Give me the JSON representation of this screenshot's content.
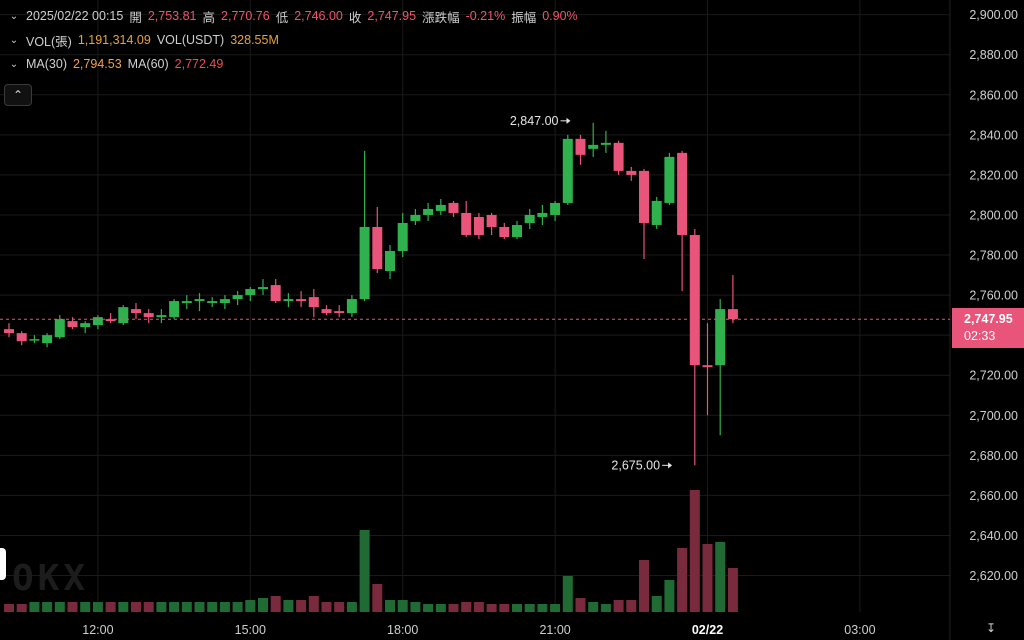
{
  "header": {
    "datetime": "2025/02/22 00:15",
    "open_label": "開",
    "open": "2,753.81",
    "high_label": "高",
    "high": "2,770.76",
    "low_label": "低",
    "low": "2,746.00",
    "close_label": "收",
    "close": "2,747.95",
    "change_label": "漲跌幅",
    "change": "-0.21%",
    "amplitude_label": "振幅",
    "amplitude": "0.90%"
  },
  "volume": {
    "vol_label": "VOL(張)",
    "vol_value": "1,191,314.09",
    "usdt_label": "VOL(USDT)",
    "usdt_value": "328.55M"
  },
  "ma": {
    "ma30_label": "MA(30)",
    "ma30_value": "2,794.53",
    "ma60_label": "MA(60)",
    "ma60_value": "2,772.49"
  },
  "price_tag": {
    "price": "2,747.95",
    "countdown": "02:33"
  },
  "watermark": "OKX",
  "colors": {
    "up": "#2fb24d",
    "down": "#e8547a",
    "vol_up": "#1f6b33",
    "vol_down": "#7a2a3d",
    "grid": "#1a1a1a"
  },
  "chart_data": {
    "type": "candlestick",
    "y_ticks": [
      2620,
      2640,
      2660,
      2680,
      2700,
      2720,
      2740,
      2760,
      2780,
      2800,
      2820,
      2840,
      2860,
      2880,
      2900
    ],
    "y_tick_labels": [
      "2,620.00",
      "2,640.00",
      "2,660.00",
      "2,680.00",
      "2,700.00",
      "2,720.00",
      "2,740.00",
      "2,760.00",
      "2,780.00",
      "2,800.00",
      "2,820.00",
      "2,840.00",
      "2,860.00",
      "2,880.00",
      "2,900.00"
    ],
    "ylim": [
      2600,
      2910
    ],
    "x_ticks": [
      {
        "label": "12:00",
        "index": 7
      },
      {
        "label": "15:00",
        "index": 19
      },
      {
        "label": "18:00",
        "index": 31
      },
      {
        "label": "21:00",
        "index": 43
      },
      {
        "label": "02/22",
        "index": 55
      },
      {
        "label": "03:00",
        "index": 67
      }
    ],
    "current_price": 2747.95,
    "annotations": [
      {
        "label": "2,847.00",
        "index": 45,
        "price": 2847
      },
      {
        "label": "2,675.00",
        "index": 53,
        "price": 2675
      }
    ],
    "candles": [
      {
        "o": 2743,
        "h": 2746,
        "l": 2739,
        "c": 2741,
        "v": 4
      },
      {
        "o": 2741,
        "h": 2742,
        "l": 2735,
        "c": 2737,
        "v": 4
      },
      {
        "o": 2738,
        "h": 2740,
        "l": 2736,
        "c": 2738,
        "v": 5
      },
      {
        "o": 2736,
        "h": 2741,
        "l": 2734,
        "c": 2740,
        "v": 5
      },
      {
        "o": 2739,
        "h": 2750,
        "l": 2738,
        "c": 2748,
        "v": 5
      },
      {
        "o": 2747,
        "h": 2749,
        "l": 2743,
        "c": 2744,
        "v": 5
      },
      {
        "o": 2744,
        "h": 2747,
        "l": 2741,
        "c": 2746,
        "v": 5
      },
      {
        "o": 2745,
        "h": 2750,
        "l": 2743,
        "c": 2749,
        "v": 5
      },
      {
        "o": 2748,
        "h": 2751,
        "l": 2746,
        "c": 2747,
        "v": 5
      },
      {
        "o": 2746,
        "h": 2755,
        "l": 2745,
        "c": 2754,
        "v": 5
      },
      {
        "o": 2753,
        "h": 2756,
        "l": 2748,
        "c": 2751,
        "v": 5
      },
      {
        "o": 2751,
        "h": 2753,
        "l": 2746,
        "c": 2749,
        "v": 5
      },
      {
        "o": 2749,
        "h": 2753,
        "l": 2746,
        "c": 2750,
        "v": 5
      },
      {
        "o": 2749,
        "h": 2758,
        "l": 2748,
        "c": 2757,
        "v": 5
      },
      {
        "o": 2756,
        "h": 2760,
        "l": 2753,
        "c": 2757,
        "v": 5
      },
      {
        "o": 2757,
        "h": 2761,
        "l": 2752,
        "c": 2758,
        "v": 5
      },
      {
        "o": 2756,
        "h": 2759,
        "l": 2754,
        "c": 2757,
        "v": 5
      },
      {
        "o": 2756,
        "h": 2760,
        "l": 2753,
        "c": 2758,
        "v": 5
      },
      {
        "o": 2758,
        "h": 2762,
        "l": 2755,
        "c": 2760,
        "v": 5
      },
      {
        "o": 2760,
        "h": 2764,
        "l": 2757,
        "c": 2763,
        "v": 6
      },
      {
        "o": 2763,
        "h": 2768,
        "l": 2760,
        "c": 2764,
        "v": 7
      },
      {
        "o": 2765,
        "h": 2768,
        "l": 2756,
        "c": 2757,
        "v": 8
      },
      {
        "o": 2757,
        "h": 2761,
        "l": 2754,
        "c": 2758,
        "v": 6
      },
      {
        "o": 2758,
        "h": 2762,
        "l": 2754,
        "c": 2757,
        "v": 6
      },
      {
        "o": 2759,
        "h": 2763,
        "l": 2749,
        "c": 2754,
        "v": 8
      },
      {
        "o": 2753,
        "h": 2755,
        "l": 2750,
        "c": 2751,
        "v": 5
      },
      {
        "o": 2752,
        "h": 2755,
        "l": 2749,
        "c": 2751,
        "v": 5
      },
      {
        "o": 2751,
        "h": 2760,
        "l": 2749,
        "c": 2758,
        "v": 5
      },
      {
        "o": 2758,
        "h": 2832,
        "l": 2757,
        "c": 2794,
        "v": 41
      },
      {
        "o": 2794,
        "h": 2804,
        "l": 2771,
        "c": 2773,
        "v": 14
      },
      {
        "o": 2772,
        "h": 2785,
        "l": 2768,
        "c": 2782,
        "v": 6
      },
      {
        "o": 2782,
        "h": 2801,
        "l": 2779,
        "c": 2796,
        "v": 6
      },
      {
        "o": 2797,
        "h": 2803,
        "l": 2795,
        "c": 2800,
        "v": 5
      },
      {
        "o": 2800,
        "h": 2806,
        "l": 2797,
        "c": 2803,
        "v": 4
      },
      {
        "o": 2802,
        "h": 2808,
        "l": 2800,
        "c": 2805,
        "v": 4
      },
      {
        "o": 2806,
        "h": 2807,
        "l": 2799,
        "c": 2801,
        "v": 4
      },
      {
        "o": 2801,
        "h": 2807,
        "l": 2789,
        "c": 2790,
        "v": 5
      },
      {
        "o": 2799,
        "h": 2801,
        "l": 2788,
        "c": 2790,
        "v": 5
      },
      {
        "o": 2800,
        "h": 2801,
        "l": 2790,
        "c": 2794,
        "v": 4
      },
      {
        "o": 2794,
        "h": 2796,
        "l": 2788,
        "c": 2789,
        "v": 4
      },
      {
        "o": 2789,
        "h": 2797,
        "l": 2788,
        "c": 2795,
        "v": 4
      },
      {
        "o": 2796,
        "h": 2803,
        "l": 2793,
        "c": 2800,
        "v": 4
      },
      {
        "o": 2799,
        "h": 2805,
        "l": 2795,
        "c": 2801,
        "v": 4
      },
      {
        "o": 2800,
        "h": 2807,
        "l": 2797,
        "c": 2806,
        "v": 4
      },
      {
        "o": 2806,
        "h": 2840,
        "l": 2805,
        "c": 2838,
        "v": 18
      },
      {
        "o": 2838,
        "h": 2840,
        "l": 2825,
        "c": 2830,
        "v": 7
      },
      {
        "o": 2833,
        "h": 2846,
        "l": 2829,
        "c": 2835,
        "v": 5
      },
      {
        "o": 2835,
        "h": 2842,
        "l": 2831,
        "c": 2836,
        "v": 4
      },
      {
        "o": 2836,
        "h": 2837,
        "l": 2820,
        "c": 2822,
        "v": 6
      },
      {
        "o": 2822,
        "h": 2824,
        "l": 2817,
        "c": 2820,
        "v": 6
      },
      {
        "o": 2822,
        "h": 2823,
        "l": 2778,
        "c": 2796,
        "v": 26
      },
      {
        "o": 2795,
        "h": 2809,
        "l": 2793,
        "c": 2807,
        "v": 8
      },
      {
        "o": 2806,
        "h": 2831,
        "l": 2805,
        "c": 2829,
        "v": 16
      },
      {
        "o": 2831,
        "h": 2832,
        "l": 2762,
        "c": 2790,
        "v": 32
      },
      {
        "o": 2790,
        "h": 2793,
        "l": 2675,
        "c": 2725,
        "v": 61
      },
      {
        "o": 2725,
        "h": 2746,
        "l": 2700,
        "c": 2724,
        "v": 34
      },
      {
        "o": 2725,
        "h": 2758,
        "l": 2690,
        "c": 2753,
        "v": 35
      },
      {
        "o": 2753,
        "h": 2770,
        "l": 2746,
        "c": 2748,
        "v": 22
      }
    ]
  }
}
